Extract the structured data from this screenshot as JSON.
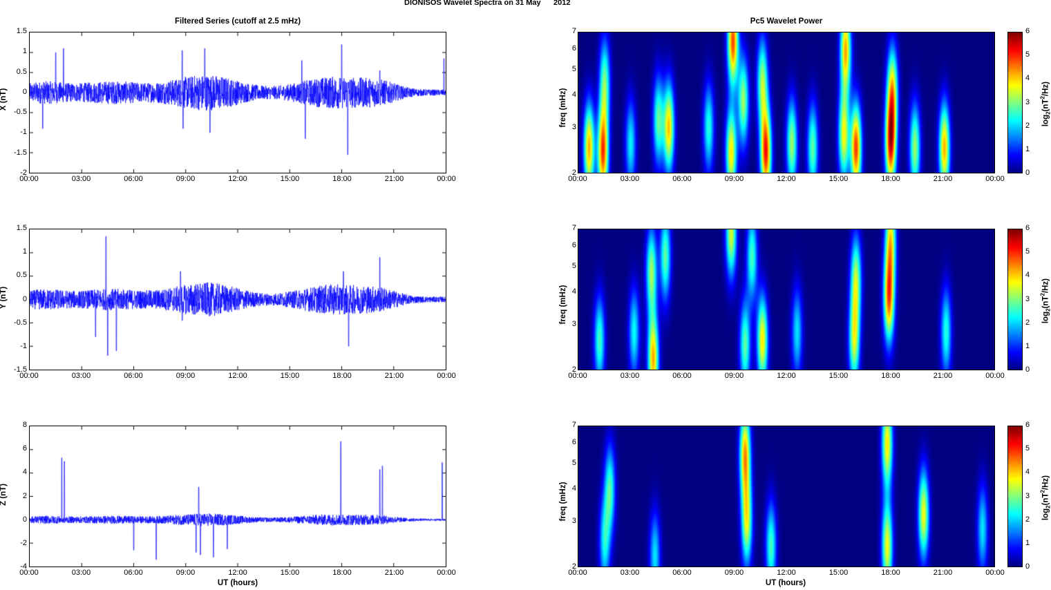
{
  "figure_title": "DIONISOS Wavelet Spectra on 31 May      2012",
  "colors": {
    "trace": "#0000ff",
    "jet_min": "#00008f",
    "jet_max": "#800000"
  },
  "chart_data": [
    {
      "type": "line",
      "title": "Filtered Series (cutoff at 2.5 mHz)",
      "component": "X",
      "ylabel": "X (nT)",
      "xlabel": "",
      "x_ticks": [
        "00:00",
        "03:00",
        "06:00",
        "09:00",
        "12:00",
        "15:00",
        "18:00",
        "21:00",
        "00:00"
      ],
      "y_ticks": [
        "1.5",
        "1",
        "0.5",
        "0",
        "-0.5",
        "-1",
        "-1.5",
        "-2"
      ],
      "xlim_hours": [
        0,
        24
      ],
      "ylim": [
        -2,
        1.5
      ],
      "baseline_amplitude": 0.15,
      "spikes": [
        {
          "t": 1.5,
          "v": 1.0
        },
        {
          "t": 1.95,
          "v": 1.1
        },
        {
          "t": 0.75,
          "v": -0.9
        },
        {
          "t": 8.8,
          "v": 1.05
        },
        {
          "t": 8.85,
          "v": -0.9
        },
        {
          "t": 10.1,
          "v": 1.1
        },
        {
          "t": 10.4,
          "v": -1.0
        },
        {
          "t": 15.7,
          "v": 0.8
        },
        {
          "t": 15.9,
          "v": -1.15
        },
        {
          "t": 18.0,
          "v": 1.2
        },
        {
          "t": 18.35,
          "v": -1.55
        },
        {
          "t": 20.2,
          "v": 0.55
        },
        {
          "t": 23.9,
          "v": 0.85
        }
      ]
    },
    {
      "type": "heatmap",
      "title": "Pc5 Wavelet Power",
      "component": "X",
      "ylabel": "freq (mHz)",
      "xlabel": "",
      "x_ticks": [
        "00:00",
        "03:00",
        "06:00",
        "09:00",
        "12:00",
        "15:00",
        "18:00",
        "21:00",
        "00:00"
      ],
      "y_ticks": [
        "7",
        "6",
        "5",
        "4",
        "3",
        "2"
      ],
      "ylim_mHz": [
        2,
        7
      ],
      "y_scale": "log",
      "colorbar_label": "log2(nT²/Hz)",
      "colorbar_ticks": [
        "6",
        "5",
        "4",
        "3",
        "2",
        "1",
        "0"
      ],
      "clim": [
        0,
        6
      ],
      "blobs": [
        {
          "t": 0.6,
          "f": 2.5,
          "p": 4.8
        },
        {
          "t": 1.4,
          "f": 2.4,
          "p": 5.5
        },
        {
          "t": 1.5,
          "f": 4.5,
          "p": 3.2
        },
        {
          "t": 3.0,
          "f": 2.6,
          "p": 2.5
        },
        {
          "t": 4.6,
          "f": 3.2,
          "p": 3.2
        },
        {
          "t": 5.2,
          "f": 3.0,
          "p": 4.6
        },
        {
          "t": 7.5,
          "f": 3.0,
          "p": 2.8
        },
        {
          "t": 8.8,
          "f": 2.4,
          "p": 4.4
        },
        {
          "t": 8.9,
          "f": 6.5,
          "p": 5.5
        },
        {
          "t": 9.5,
          "f": 3.8,
          "p": 3.6
        },
        {
          "t": 10.8,
          "f": 2.4,
          "p": 5.8
        },
        {
          "t": 10.6,
          "f": 4.5,
          "p": 3.6
        },
        {
          "t": 12.3,
          "f": 2.6,
          "p": 3.6
        },
        {
          "t": 13.5,
          "f": 2.5,
          "p": 3.2
        },
        {
          "t": 15.3,
          "f": 2.8,
          "p": 4.2
        },
        {
          "t": 16.0,
          "f": 2.5,
          "p": 5.6
        },
        {
          "t": 15.4,
          "f": 6.0,
          "p": 4.8
        },
        {
          "t": 18.0,
          "f": 2.6,
          "p": 5.8
        },
        {
          "t": 18.1,
          "f": 4.2,
          "p": 4.2
        },
        {
          "t": 19.4,
          "f": 2.5,
          "p": 3.6
        },
        {
          "t": 21.1,
          "f": 2.5,
          "p": 4.8
        }
      ]
    },
    {
      "type": "line",
      "title": "",
      "component": "Y",
      "ylabel": "Y (nT)",
      "xlabel": "",
      "x_ticks": [
        "00:00",
        "03:00",
        "06:00",
        "09:00",
        "12:00",
        "15:00",
        "18:00",
        "21:00",
        "00:00"
      ],
      "y_ticks": [
        "1.5",
        "1",
        "0.5",
        "0",
        "-0.5",
        "-1",
        "-1.5"
      ],
      "xlim_hours": [
        0,
        24
      ],
      "ylim": [
        -1.5,
        1.5
      ],
      "baseline_amplitude": 0.12,
      "spikes": [
        {
          "t": 3.8,
          "v": -0.8
        },
        {
          "t": 4.4,
          "v": 1.35
        },
        {
          "t": 4.5,
          "v": -1.2
        },
        {
          "t": 5.0,
          "v": -1.1
        },
        {
          "t": 8.7,
          "v": 0.6
        },
        {
          "t": 8.8,
          "v": -0.45
        },
        {
          "t": 18.1,
          "v": 0.6
        },
        {
          "t": 18.4,
          "v": -1.0
        },
        {
          "t": 20.2,
          "v": 0.9
        }
      ]
    },
    {
      "type": "heatmap",
      "title": "",
      "component": "Y",
      "ylabel": "freq (mHz)",
      "xlabel": "",
      "x_ticks": [
        "00:00",
        "03:00",
        "06:00",
        "09:00",
        "12:00",
        "15:00",
        "18:00",
        "21:00",
        "00:00"
      ],
      "y_ticks": [
        "7",
        "6",
        "5",
        "4",
        "3",
        "2"
      ],
      "ylim_mHz": [
        2,
        7
      ],
      "y_scale": "log",
      "colorbar_label": "log2(nT²/Hz)",
      "colorbar_ticks": [
        "6",
        "5",
        "4",
        "3",
        "2",
        "1",
        "0"
      ],
      "clim": [
        0,
        6
      ],
      "blobs": [
        {
          "t": 1.2,
          "f": 2.6,
          "p": 3.0
        },
        {
          "t": 3.2,
          "f": 2.8,
          "p": 2.6
        },
        {
          "t": 4.3,
          "f": 2.2,
          "p": 4.8
        },
        {
          "t": 4.2,
          "f": 4.8,
          "p": 3.6
        },
        {
          "t": 5.0,
          "f": 5.5,
          "p": 3.2
        },
        {
          "t": 8.8,
          "f": 6.8,
          "p": 4.0
        },
        {
          "t": 9.6,
          "f": 2.5,
          "p": 3.2
        },
        {
          "t": 10.6,
          "f": 2.6,
          "p": 4.4
        },
        {
          "t": 10.0,
          "f": 5.5,
          "p": 3.0
        },
        {
          "t": 12.6,
          "f": 2.8,
          "p": 2.4
        },
        {
          "t": 15.9,
          "f": 2.6,
          "p": 3.8
        },
        {
          "t": 16.0,
          "f": 4.5,
          "p": 3.6
        },
        {
          "t": 17.9,
          "f": 3.8,
          "p": 5.2
        },
        {
          "t": 18.0,
          "f": 6.5,
          "p": 4.0
        },
        {
          "t": 21.2,
          "f": 2.8,
          "p": 2.8
        }
      ]
    },
    {
      "type": "line",
      "title": "",
      "component": "Z",
      "ylabel": "Z (nT)",
      "xlabel": "UT (hours)",
      "x_ticks": [
        "00:00",
        "03:00",
        "06:00",
        "09:00",
        "12:00",
        "15:00",
        "18:00",
        "21:00",
        "00:00"
      ],
      "y_ticks": [
        "8",
        "6",
        "4",
        "2",
        "0",
        "-2",
        "-4"
      ],
      "xlim_hours": [
        0,
        24
      ],
      "ylim": [
        -4,
        8
      ],
      "baseline_amplitude": 0.18,
      "spikes": [
        {
          "t": 1.85,
          "v": 5.3
        },
        {
          "t": 2.0,
          "v": 5.0
        },
        {
          "t": 6.0,
          "v": -2.6
        },
        {
          "t": 7.3,
          "v": -3.4
        },
        {
          "t": 9.6,
          "v": -2.8
        },
        {
          "t": 9.75,
          "v": 2.8
        },
        {
          "t": 9.85,
          "v": -3.0
        },
        {
          "t": 10.6,
          "v": -3.2
        },
        {
          "t": 11.4,
          "v": -2.5
        },
        {
          "t": 17.95,
          "v": 6.7
        },
        {
          "t": 20.2,
          "v": 4.3
        },
        {
          "t": 20.35,
          "v": 4.6
        },
        {
          "t": 23.8,
          "v": 4.9
        }
      ]
    },
    {
      "type": "heatmap",
      "title": "",
      "component": "Z",
      "ylabel": "freq (mHz)",
      "xlabel": "UT (hours)",
      "x_ticks": [
        "00:00",
        "03:00",
        "06:00",
        "09:00",
        "12:00",
        "15:00",
        "18:00",
        "21:00",
        "00:00"
      ],
      "y_ticks": [
        "7",
        "6",
        "5",
        "4",
        "3",
        "2"
      ],
      "ylim_mHz": [
        2,
        7
      ],
      "y_scale": "log",
      "colorbar_label": "log2(nT²/Hz)",
      "colorbar_ticks": [
        "6",
        "5",
        "4",
        "3",
        "2",
        "1",
        "0"
      ],
      "clim": [
        0,
        6
      ],
      "blobs": [
        {
          "t": 1.8,
          "f": 4.0,
          "p": 3.0
        },
        {
          "t": 1.5,
          "f": 2.5,
          "p": 2.6
        },
        {
          "t": 4.4,
          "f": 2.2,
          "p": 2.4
        },
        {
          "t": 9.6,
          "f": 5.5,
          "p": 4.8
        },
        {
          "t": 9.7,
          "f": 3.0,
          "p": 4.0
        },
        {
          "t": 11.1,
          "f": 2.4,
          "p": 3.0
        },
        {
          "t": 17.8,
          "f": 2.4,
          "p": 4.2
        },
        {
          "t": 17.8,
          "f": 6.0,
          "p": 4.4
        },
        {
          "t": 19.9,
          "f": 3.2,
          "p": 4.2
        },
        {
          "t": 23.3,
          "f": 2.8,
          "p": 2.4
        }
      ]
    }
  ]
}
